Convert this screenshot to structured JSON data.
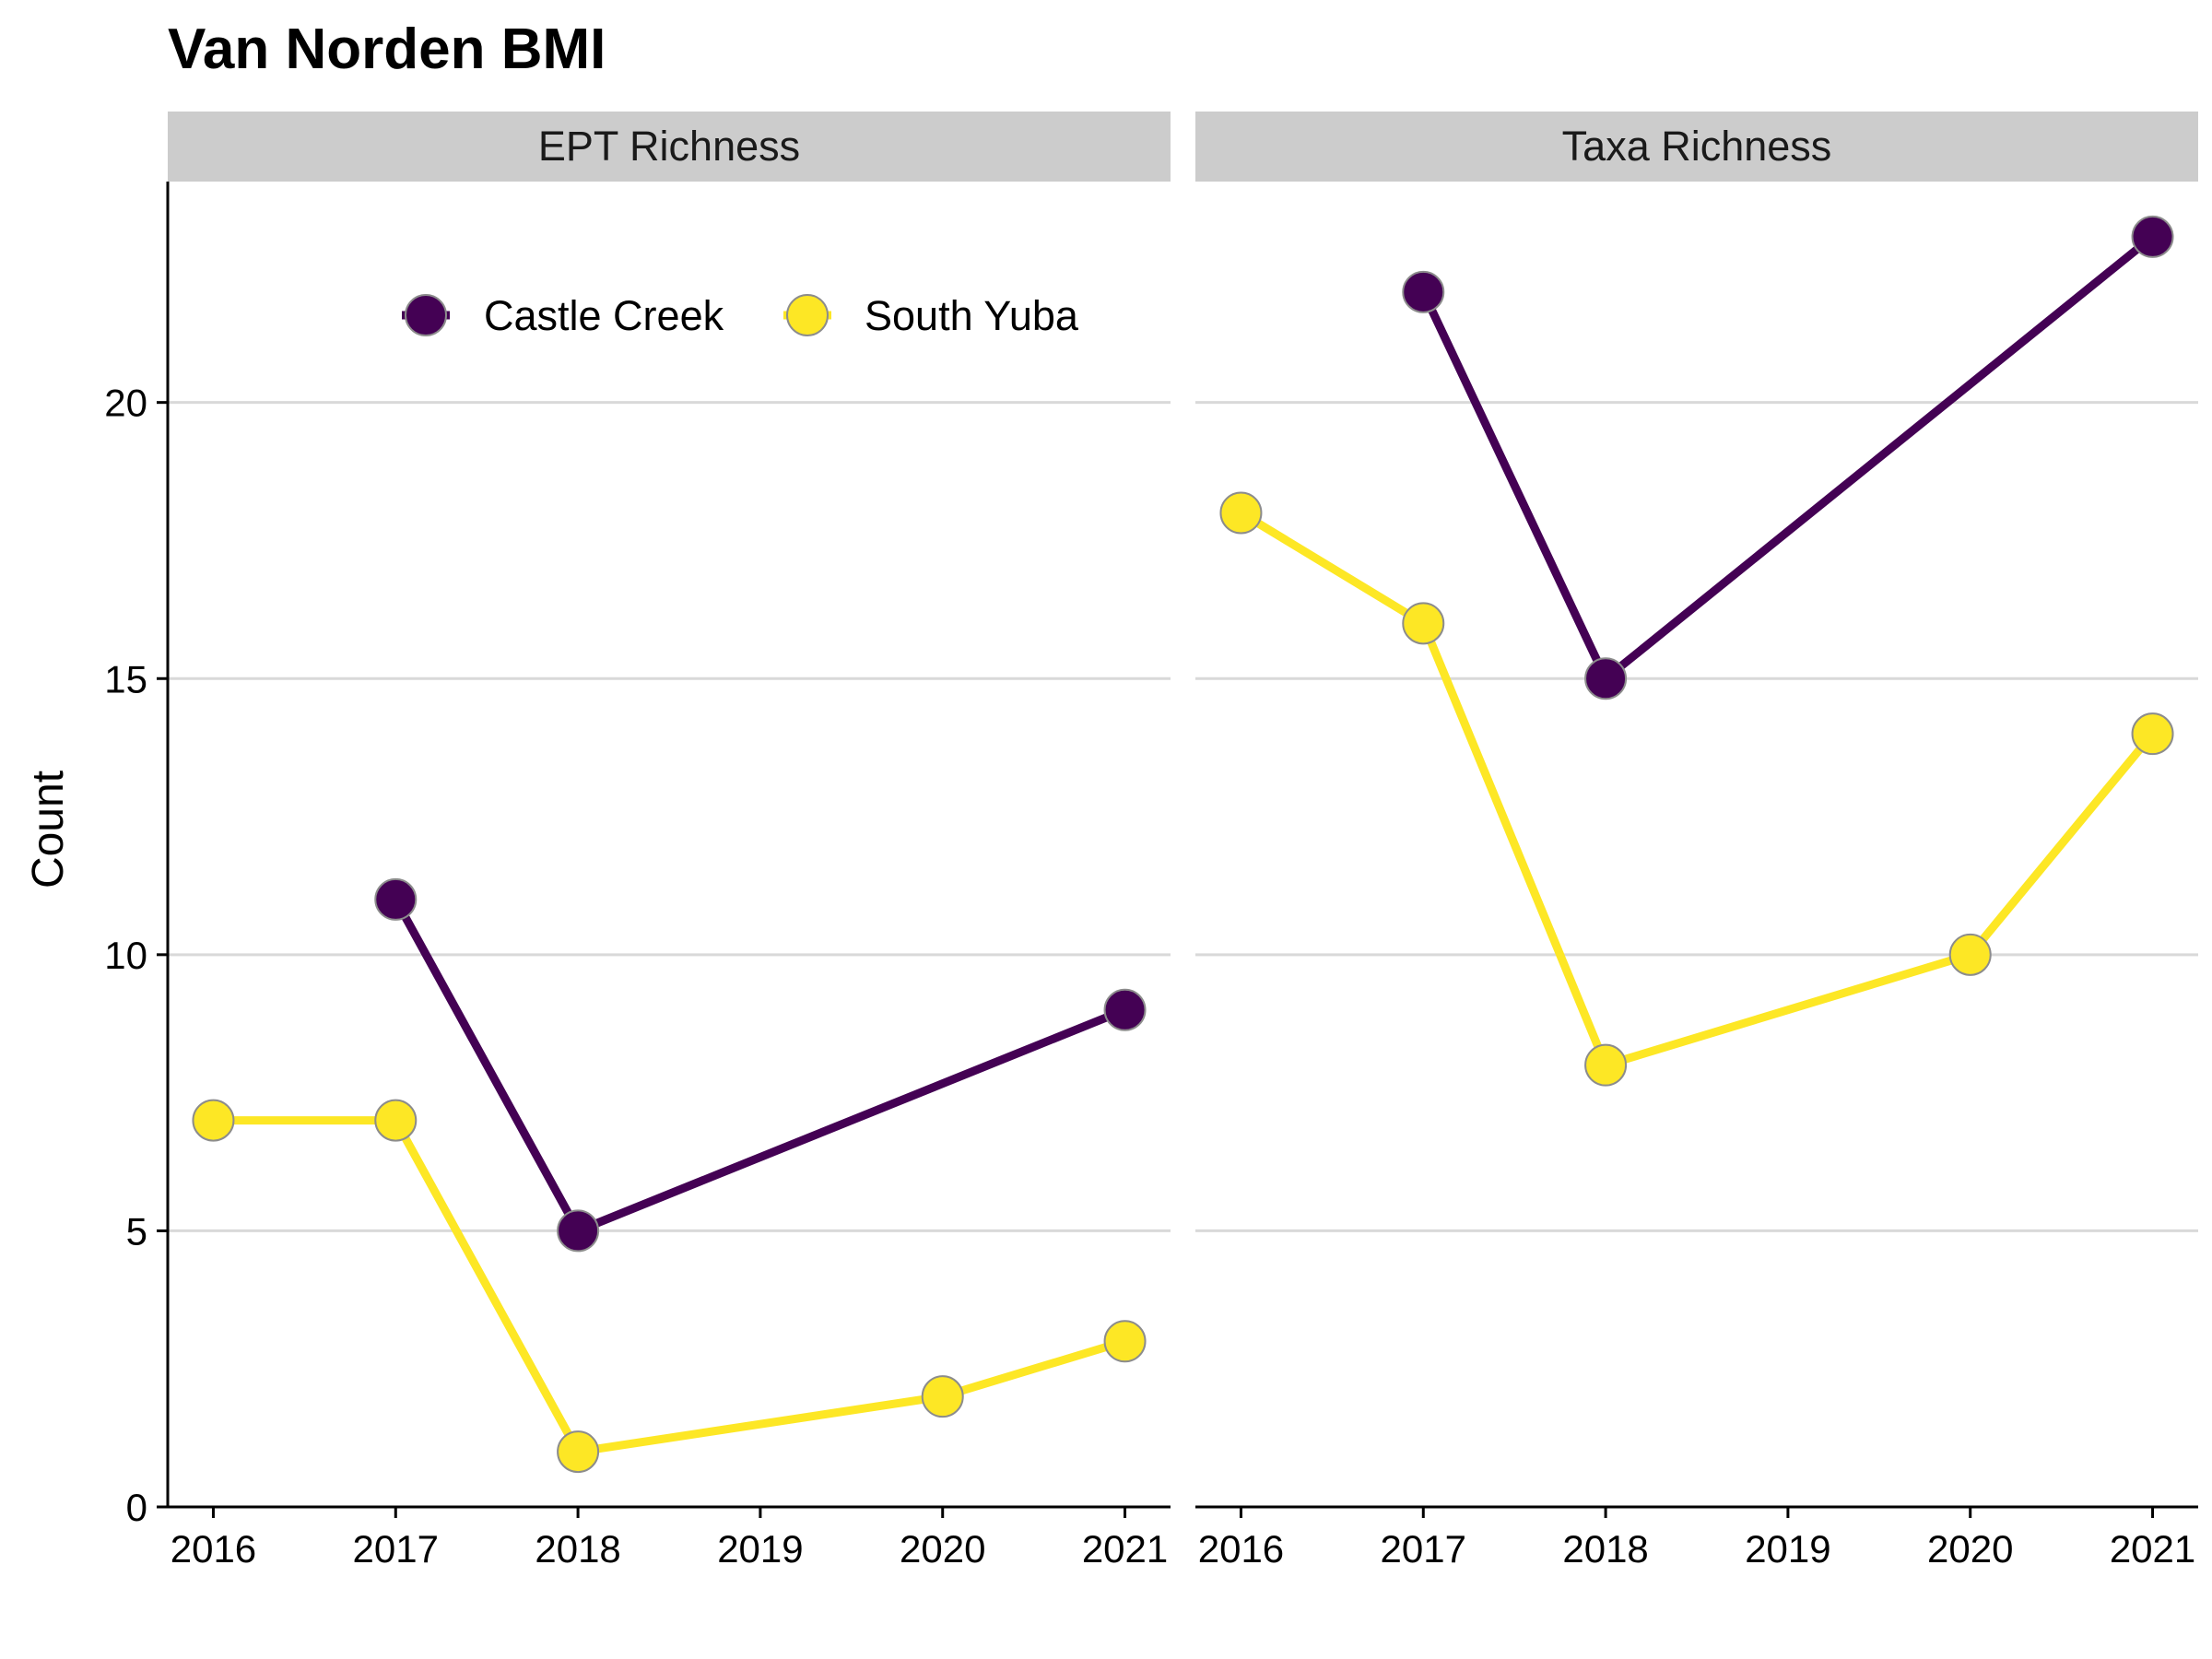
{
  "chart_data": {
    "type": "line",
    "title": "Van Norden BMI",
    "ylabel": "Count",
    "xlabel": "",
    "x": [
      2016,
      2017,
      2018,
      2019,
      2020,
      2021
    ],
    "ylim": [
      0,
      24
    ],
    "yticks": [
      0,
      5,
      10,
      15,
      20
    ],
    "grid": "horizontal major",
    "legend_position": "top (inside first panel)",
    "colors": {
      "Castle Creek": "#440154",
      "South Yuba": "#FDE725",
      "point_outline": "#8c8c8c",
      "strip": "#cccccc",
      "grid": "#d9d9d9"
    },
    "legend": [
      "Castle Creek",
      "South Yuba"
    ],
    "panels": [
      {
        "label": "EPT Richness",
        "series": [
          {
            "name": "Castle Creek",
            "x": [
              2017,
              2018,
              2021
            ],
            "y": [
              11,
              5,
              9
            ]
          },
          {
            "name": "South Yuba",
            "x": [
              2016,
              2017,
              2018,
              2020,
              2021
            ],
            "y": [
              7,
              7,
              1,
              2,
              3
            ]
          }
        ]
      },
      {
        "label": "Taxa Richness",
        "series": [
          {
            "name": "Castle Creek",
            "x": [
              2017,
              2018,
              2021
            ],
            "y": [
              22,
              15,
              23
            ]
          },
          {
            "name": "South Yuba",
            "x": [
              2016,
              2017,
              2018,
              2020,
              2021
            ],
            "y": [
              18,
              16,
              8,
              10,
              14
            ]
          }
        ]
      }
    ]
  }
}
